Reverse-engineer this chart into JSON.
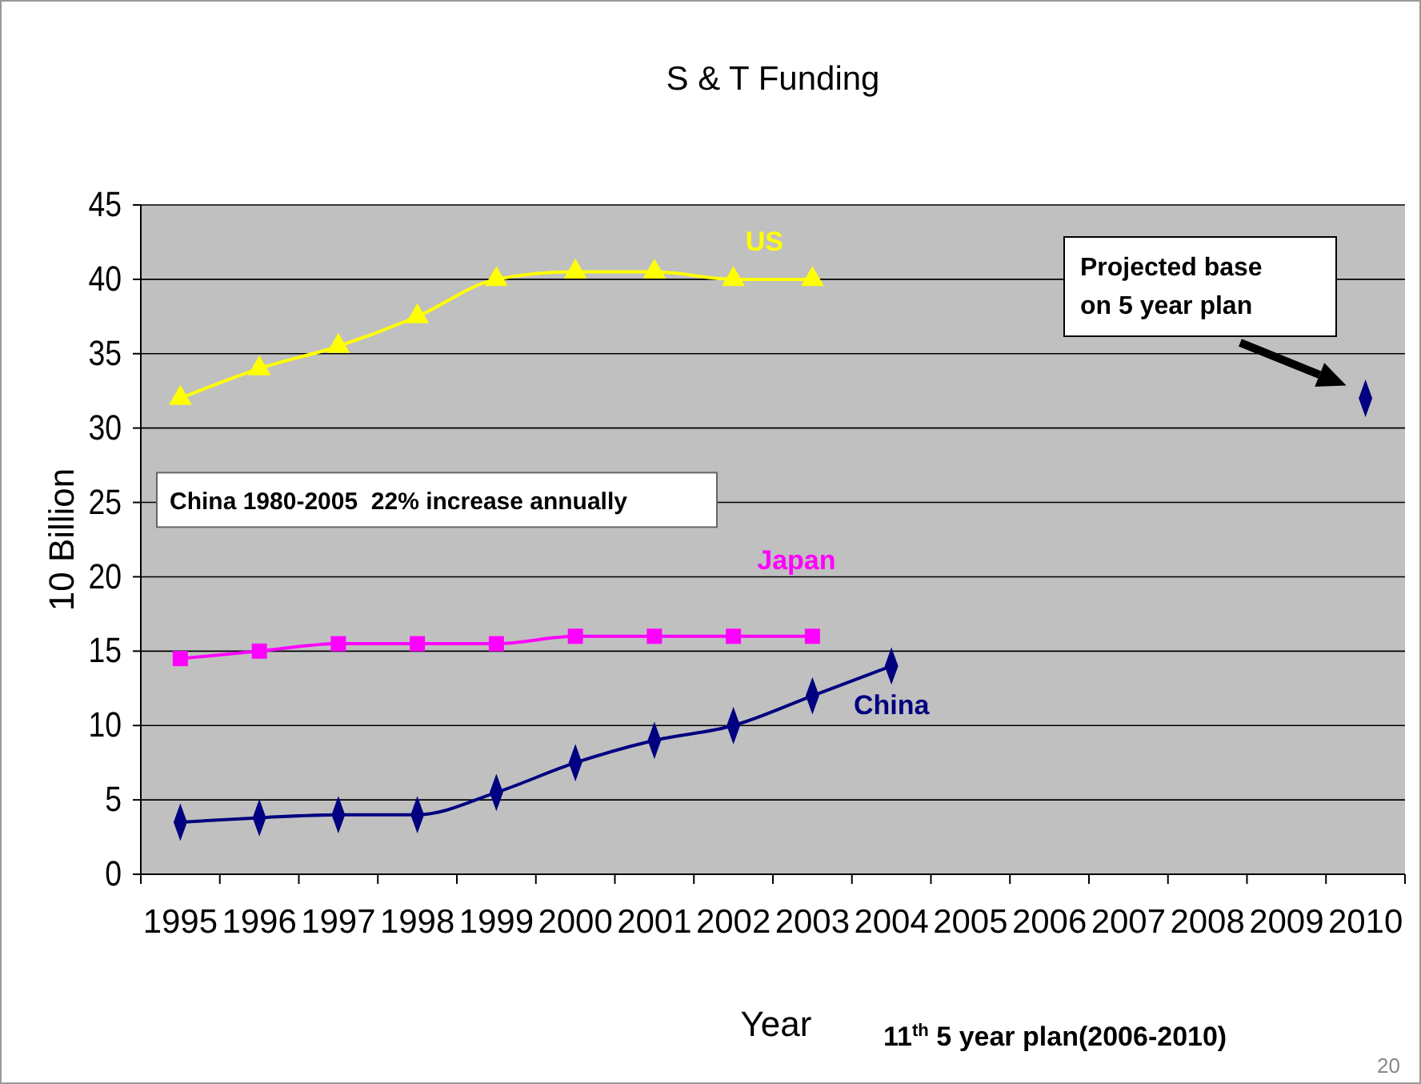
{
  "chart_data": {
    "type": "line",
    "title": "S & T Funding",
    "xlabel": "Year",
    "ylabel": "10 Billion",
    "categories": [
      "1995",
      "1996",
      "1997",
      "1998",
      "1999",
      "2000",
      "2001",
      "2002",
      "2003",
      "2004",
      "2005",
      "2006",
      "2007",
      "2008",
      "2009",
      "2010"
    ],
    "series": [
      {
        "name": "US",
        "color": "#ffff00",
        "marker": "triangle",
        "values": [
          32,
          34,
          35.5,
          37.5,
          40,
          40.5,
          40.5,
          40,
          40,
          null,
          null,
          null,
          null,
          null,
          null,
          null
        ]
      },
      {
        "name": "Japan",
        "color": "#ff00ff",
        "marker": "square",
        "values": [
          14.5,
          15,
          15.5,
          15.5,
          15.5,
          16,
          16,
          16,
          16,
          null,
          null,
          null,
          null,
          null,
          null,
          null
        ]
      },
      {
        "name": "China",
        "color": "#000080",
        "marker": "diamond",
        "values": [
          3.5,
          3.8,
          4,
          4,
          5.5,
          7.5,
          9,
          10,
          12,
          14,
          null,
          null,
          null,
          null,
          null,
          32
        ]
      }
    ],
    "ylim": [
      0,
      45
    ],
    "yticks": [
      0,
      5,
      10,
      15,
      20,
      25,
      30,
      35,
      40,
      45
    ],
    "grid": "y",
    "legend": false,
    "annotations": [
      "China 1980-2005  22% increase annually",
      "Projected base on 5 year plan",
      "11$^{th}$ 5 year plan(2006-2010)",
      "20"
    ]
  }
}
